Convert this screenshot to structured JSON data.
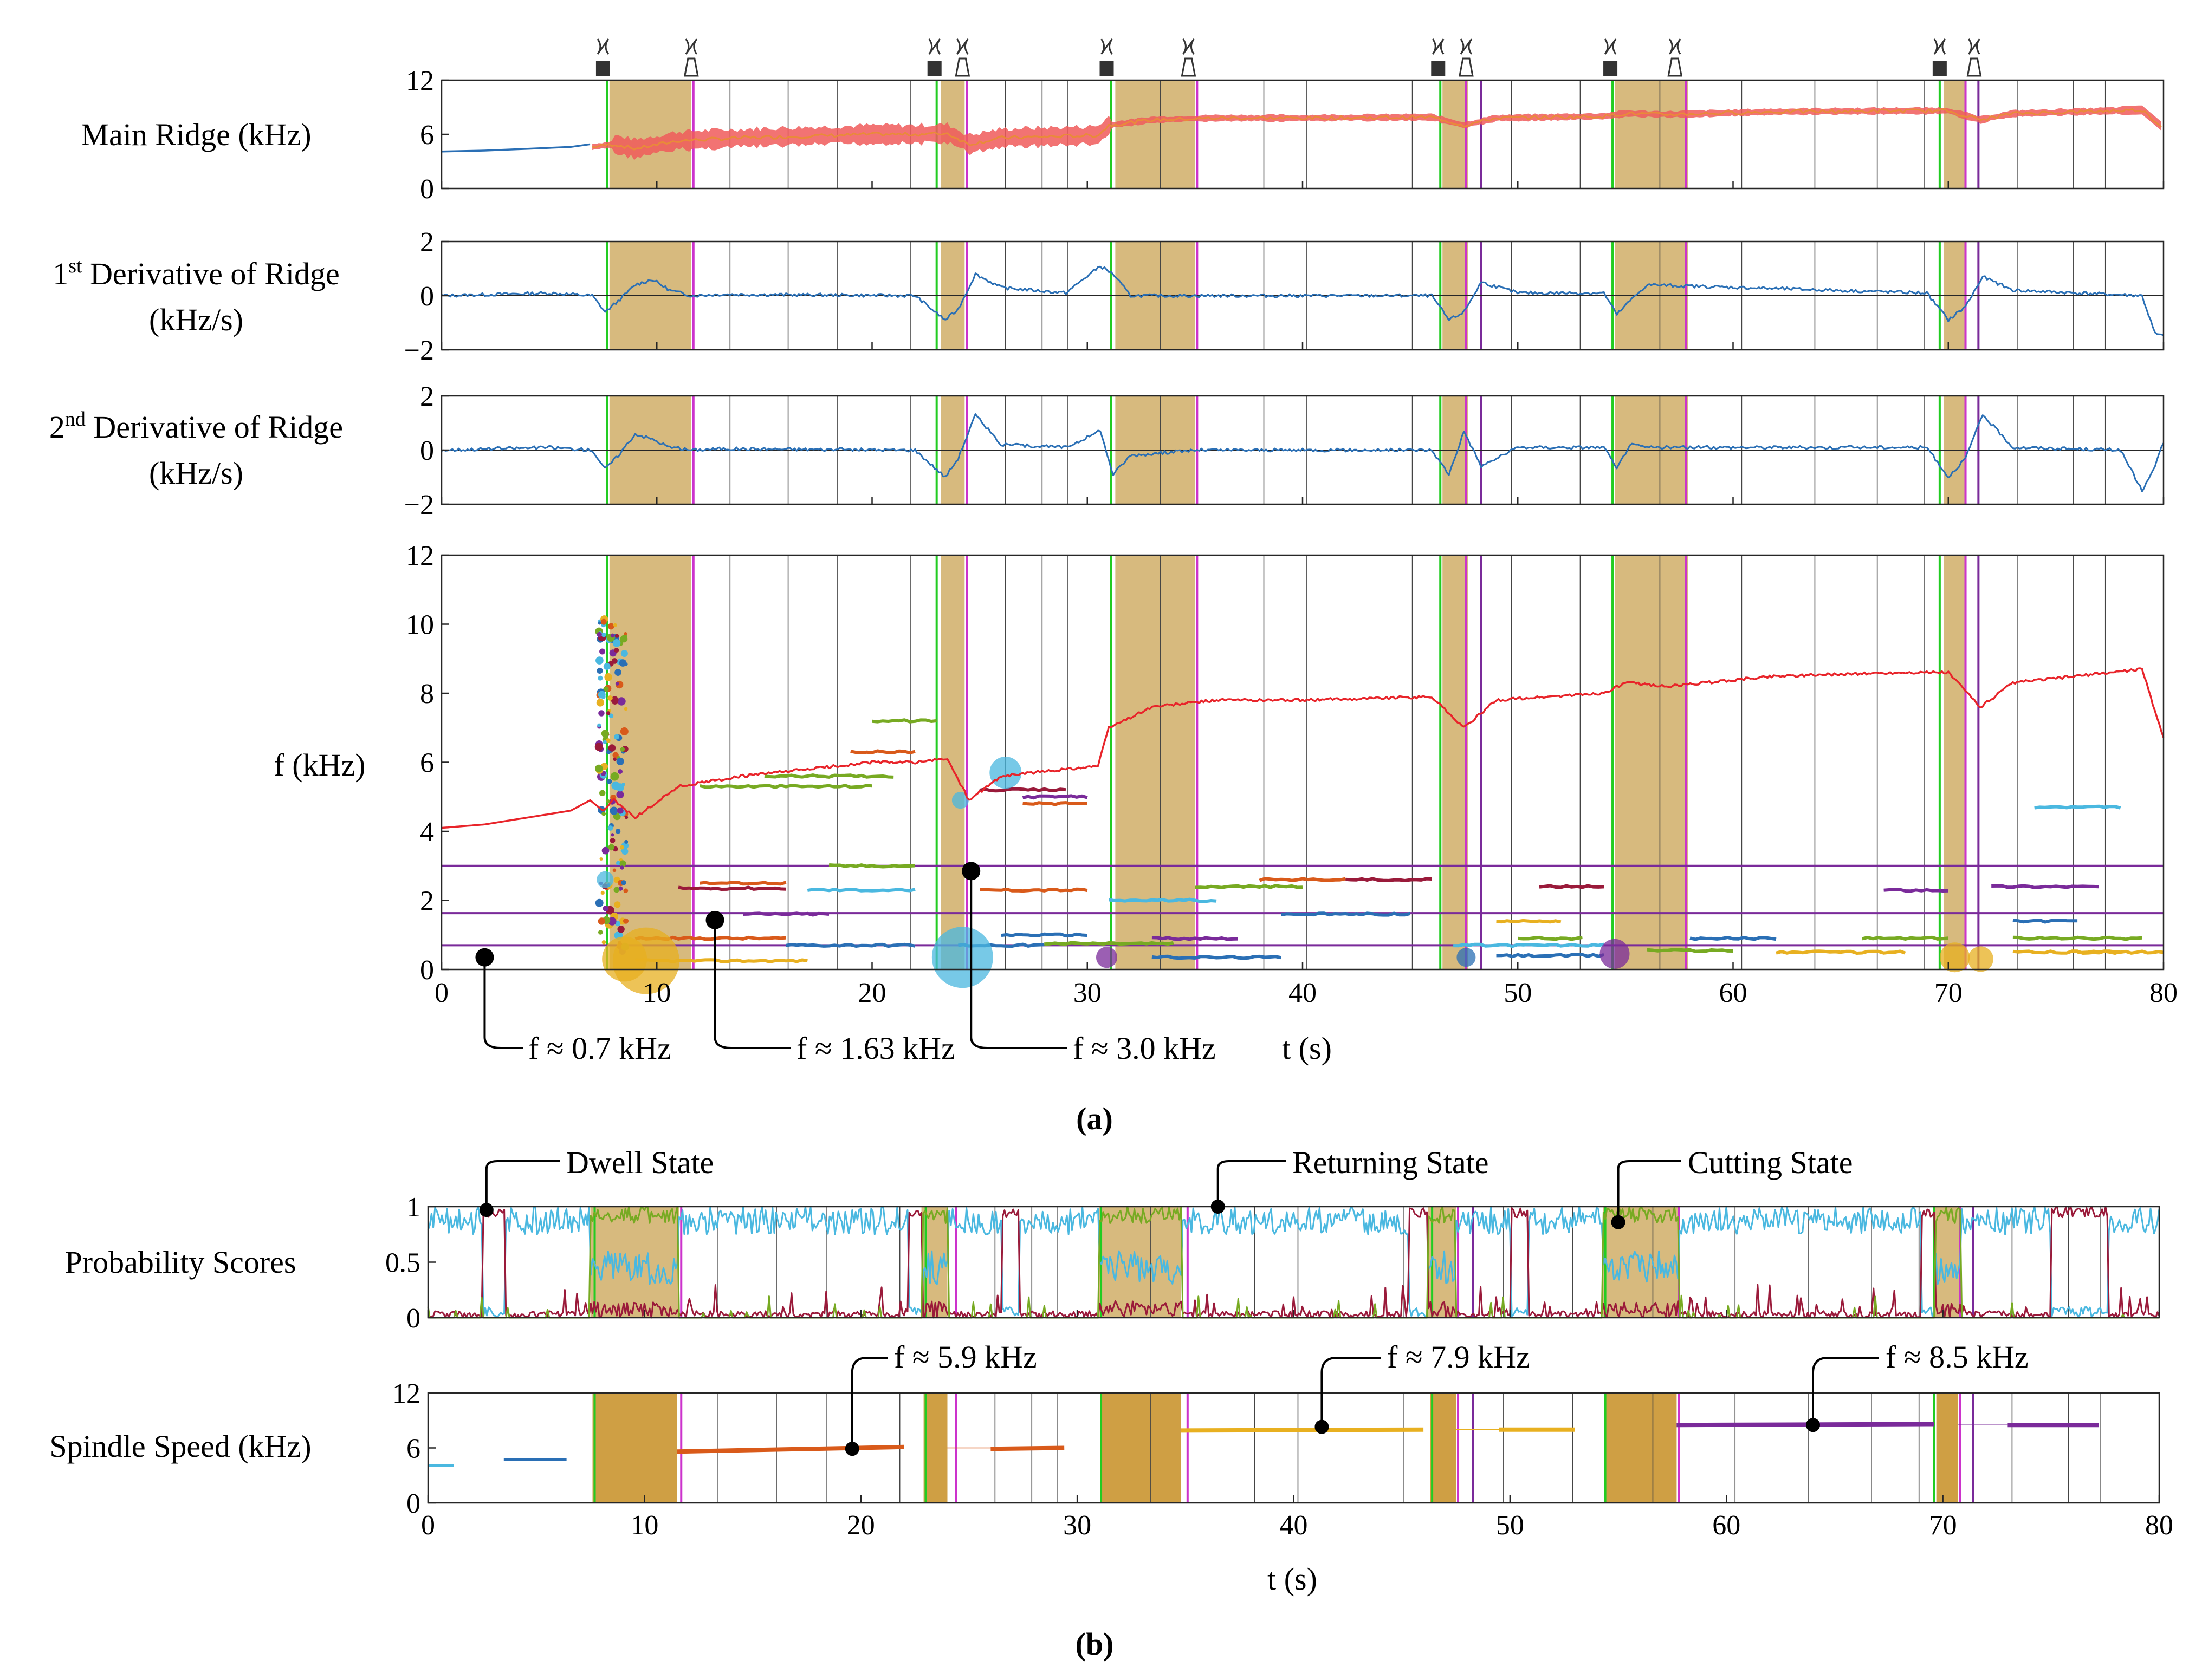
{
  "colors": {
    "cut_band": "#c8a04c",
    "cut_band_b": "#cc9a3a",
    "green_line": "#22cc22",
    "magenta_line": "#cc33cc",
    "ridge_red": "#e8242a",
    "ridge_blue": "#2a6fb5",
    "envelope_red": "#f05a5a",
    "envelope_orange": "#e98a3a",
    "purple_line": "#7a2a9a",
    "prob_cyan": "#4ab8e0",
    "prob_maroon": "#9a1a3a",
    "prob_green": "#77aa22",
    "speed_orange": "#d95a1a",
    "speed_yellow": "#e8b020",
    "speed_purple": "#7a2a9a"
  },
  "icons": [
    "drill-tool-icon",
    "tool-holder-icon"
  ],
  "chart_data": [
    {
      "id": "main-ridge",
      "type": "line",
      "ylabel": "Main Ridge (kHz)",
      "xlim": [
        0,
        80
      ],
      "ylim": [
        0,
        12
      ],
      "yticks": [
        "0",
        "6",
        "12"
      ],
      "cut_regions": [
        [
          7.8,
          11.6
        ],
        [
          23.2,
          24.3
        ],
        [
          31.3,
          35.0
        ],
        [
          46.5,
          47.7
        ],
        [
          54.5,
          57.9
        ],
        [
          69.8,
          70.8
        ]
      ],
      "green_lines": [
        7.7,
        23.0,
        31.1,
        46.4,
        54.4,
        69.6
      ],
      "magenta_lines": [
        11.7,
        24.4,
        35.1,
        47.6,
        57.8,
        70.8
      ],
      "purple_lines": [
        48.3,
        71.4
      ],
      "gray_lines": [
        13.4,
        16.1,
        18.4,
        21.8,
        26.2,
        27.9,
        29.1,
        33.4,
        38.2,
        40.2,
        45.1,
        49.7,
        52.9,
        56.6,
        60.4,
        63.8,
        66.7,
        68.9,
        73.2,
        75.8,
        77.3
      ],
      "tool_markers": [
        7.5,
        11.6,
        22.9,
        24.2,
        30.9,
        34.7,
        46.3,
        47.6,
        54.3,
        57.3,
        69.6,
        71.2
      ],
      "series": [
        {
          "name": "main ridge (idle)",
          "color": "#2a6fb5",
          "x": [
            0,
            2,
            4,
            6,
            6.9
          ],
          "y": [
            4.1,
            4.2,
            4.4,
            4.6,
            4.9
          ]
        },
        {
          "name": "main ridge (cutting)",
          "color": "#e8242a",
          "x": [
            7,
            8,
            9,
            11,
            14,
            17,
            20,
            22,
            23.5,
            24.5,
            26,
            29,
            30.5,
            31,
            33,
            36,
            40,
            46,
            47.5,
            49,
            54,
            55,
            57,
            62,
            68,
            70,
            71.5,
            73,
            76,
            79,
            80
          ],
          "y": [
            4.6,
            4.9,
            4.4,
            5.3,
            5.6,
            5.8,
            6.0,
            6.0,
            6.1,
            4.9,
            5.6,
            5.8,
            5.9,
            7.0,
            7.6,
            7.8,
            7.8,
            7.9,
            7.0,
            7.8,
            8.0,
            8.3,
            8.2,
            8.5,
            8.6,
            8.6,
            7.6,
            8.3,
            8.5,
            8.7,
            6.7
          ]
        }
      ]
    },
    {
      "id": "first-derivative",
      "type": "line",
      "ylabel": [
        "1st Derivative of Ridge",
        "(kHz/s)"
      ],
      "ylabel_base": "1",
      "ylabel_sup": "st",
      "ylabel_rest": " Derivative of Ridge",
      "ylabel_unit": "(kHz/s)",
      "xlim": [
        0,
        80
      ],
      "ylim": [
        -2,
        2
      ],
      "yticks": [
        "−2",
        "0",
        "2"
      ],
      "series": [
        {
          "name": "d1",
          "color": "#2a6fb5",
          "x": [
            0,
            5,
            7,
            7.6,
            8.2,
            9,
            9.8,
            10.6,
            11.6,
            13,
            22,
            23.4,
            24.0,
            24.8,
            26,
            29,
            30.6,
            31.2,
            32,
            35,
            46,
            46.8,
            47.5,
            48.3,
            50,
            54,
            54.6,
            55.2,
            56,
            69,
            70,
            70.8,
            71.6,
            73,
            79,
            79.6,
            80
          ],
          "y": [
            0,
            0.1,
            0,
            -0.6,
            -0.2,
            0.4,
            0.6,
            0.2,
            0,
            0.05,
            0,
            -0.9,
            -0.5,
            0.8,
            0.3,
            0.1,
            1.1,
            0.8,
            0,
            0,
            0,
            -0.9,
            -0.6,
            0.5,
            0.1,
            0.1,
            -0.7,
            -0.2,
            0.4,
            0.1,
            -0.9,
            -0.4,
            0.7,
            0.2,
            0,
            -1.4,
            -1.5
          ]
        }
      ]
    },
    {
      "id": "second-derivative",
      "type": "line",
      "ylabel": [
        "2nd Derivative of Ridge",
        "(kHz/s)"
      ],
      "ylabel_base": "2",
      "ylabel_sup": "nd",
      "ylabel_rest": " Derivative of Ridge",
      "ylabel_unit": "(kHz/s)",
      "xlim": [
        0,
        80
      ],
      "ylim": [
        -2,
        2
      ],
      "yticks": [
        "−2",
        "0",
        "2"
      ],
      "series": [
        {
          "name": "d2",
          "color": "#2a6fb5",
          "x": [
            0,
            5,
            7,
            7.6,
            8.2,
            9,
            9.8,
            10.6,
            11.6,
            13,
            22,
            23.4,
            24.0,
            24.8,
            26,
            29,
            30.6,
            31.2,
            32,
            35,
            46,
            46.8,
            47.5,
            48.3,
            50,
            54,
            54.6,
            55.2,
            56,
            69,
            70,
            70.8,
            71.6,
            73,
            78,
            79,
            79.5,
            80
          ],
          "y": [
            0,
            0.1,
            0,
            -0.7,
            -0.2,
            0.6,
            0.4,
            0.1,
            0,
            0.05,
            0,
            -1.0,
            -0.3,
            1.3,
            0.2,
            0.1,
            0.7,
            -0.9,
            -0.2,
            0,
            0,
            -0.9,
            0.7,
            -0.6,
            0.1,
            0.1,
            -0.7,
            0.2,
            0.1,
            0.1,
            -1.0,
            -0.3,
            1.3,
            0.1,
            0,
            -1.5,
            -0.8,
            0.3
          ]
        }
      ]
    },
    {
      "id": "spectrogram-ridges",
      "type": "scatter",
      "ylabel": "f (kHz)",
      "xlabel": "t (s)",
      "xlim": [
        0,
        80
      ],
      "ylim": [
        0,
        12
      ],
      "xticks": [
        "0",
        "10",
        "20",
        "30",
        "40",
        "50",
        "60",
        "70",
        "80"
      ],
      "yticks": [
        "0",
        "2",
        "4",
        "6",
        "8",
        "10",
        "12"
      ],
      "reference_lines_khz": [
        3.0,
        1.63,
        0.7
      ],
      "annotations": [
        {
          "text": "f ≈ 0.7 kHz",
          "x": 2.0,
          "y": 0.35
        },
        {
          "text": "f ≈ 1.63 kHz",
          "x": 12.7,
          "y": 1.43
        },
        {
          "text": "f ≈ 3.0 kHz",
          "x": 24.6,
          "y": 2.85
        }
      ],
      "series": [
        {
          "name": "ridge",
          "color": "#e8242a",
          "x": [
            0,
            2,
            4,
            6,
            6.9,
            7.5,
            8,
            9,
            11,
            14,
            17,
            20,
            22,
            23.5,
            24.5,
            26,
            29,
            30.5,
            31,
            33,
            36,
            40,
            46,
            47.5,
            49,
            54,
            55,
            57,
            62,
            68,
            70,
            71.5,
            73,
            76,
            79,
            80
          ],
          "y": [
            4.1,
            4.2,
            4.4,
            4.6,
            4.9,
            4.6,
            4.9,
            4.4,
            5.3,
            5.6,
            5.8,
            6.0,
            6.0,
            6.1,
            4.9,
            5.6,
            5.8,
            5.9,
            7.0,
            7.6,
            7.8,
            7.8,
            7.9,
            7.0,
            7.8,
            8.0,
            8.3,
            8.2,
            8.5,
            8.6,
            8.6,
            7.6,
            8.3,
            8.5,
            8.7,
            6.7
          ]
        }
      ]
    },
    {
      "id": "probability-scores",
      "type": "line",
      "ylabel": "Probability Scores",
      "xlim": [
        0,
        80
      ],
      "ylim": [
        0,
        1
      ],
      "yticks": [
        "0",
        "0.5",
        "1"
      ],
      "cut_regions": [
        [
          7.5,
          11.6
        ],
        [
          22.8,
          24.0
        ],
        [
          31.0,
          34.8
        ],
        [
          46.2,
          47.5
        ],
        [
          54.3,
          57.8
        ],
        [
          69.6,
          70.8
        ]
      ],
      "annotations": [
        {
          "text": "Dwell State",
          "x": 2.7,
          "y": 0.97
        },
        {
          "text": "Returning State",
          "x": 36.5,
          "y": 1.0
        },
        {
          "text": "Cutting State",
          "x": 55.0,
          "y": 0.86
        }
      ],
      "series": [
        {
          "name": "returning",
          "color": "#4ab8e0"
        },
        {
          "name": "dwell",
          "color": "#9a1a3a"
        },
        {
          "name": "cutting",
          "color": "#77aa22"
        }
      ]
    },
    {
      "id": "spindle-speed",
      "type": "line",
      "ylabel": "Spindle Speed (kHz)",
      "xlabel": "t (s)",
      "xlim": [
        0,
        80
      ],
      "ylim": [
        0,
        12
      ],
      "xticks": [
        "0",
        "10",
        "20",
        "30",
        "40",
        "50",
        "60",
        "70",
        "80"
      ],
      "yticks": [
        "0",
        "6",
        "12"
      ],
      "cut_regions": [
        [
          7.6,
          11.5
        ],
        [
          22.9,
          24.0
        ],
        [
          31.1,
          34.8
        ],
        [
          46.3,
          47.5
        ],
        [
          54.4,
          57.7
        ],
        [
          69.7,
          70.7
        ]
      ],
      "annotations": [
        {
          "text": "f ≈ 5.9 kHz",
          "x": 19.6,
          "y": 5.9
        },
        {
          "text": "f ≈ 7.9 kHz",
          "x": 41.3,
          "y": 8.3
        },
        {
          "text": "f ≈ 8.5 kHz",
          "x": 64.0,
          "y": 8.5
        }
      ],
      "series": [
        {
          "name": "idle",
          "color": "#4ab8e0",
          "x": [
            0,
            1.2
          ],
          "y": [
            4.1,
            4.1
          ]
        },
        {
          "name": "idle 2",
          "color": "#2a6fb5",
          "x": [
            3.5,
            6.4
          ],
          "y": [
            4.7,
            4.7
          ]
        },
        {
          "name": "speed 1",
          "color": "#d95a1a",
          "x": [
            11.5,
            22.0
          ],
          "y": [
            5.6,
            6.1
          ]
        },
        {
          "name": "speed 1b",
          "color": "#d95a1a",
          "x": [
            26.0,
            29.4
          ],
          "y": [
            5.9,
            6.0
          ]
        },
        {
          "name": "speed 2",
          "color": "#e8b020",
          "x": [
            34.8,
            46.0
          ],
          "y": [
            7.9,
            8.0
          ]
        },
        {
          "name": "speed 2b",
          "color": "#e8b020",
          "x": [
            49.5,
            53.0
          ],
          "y": [
            8.0,
            8.0
          ]
        },
        {
          "name": "speed 3",
          "color": "#7a2a9a",
          "x": [
            57.7,
            69.6
          ],
          "y": [
            8.5,
            8.6
          ]
        },
        {
          "name": "speed 3b",
          "color": "#7a2a9a",
          "x": [
            73.0,
            77.2
          ],
          "y": [
            8.5,
            8.5
          ]
        }
      ]
    }
  ],
  "captions": {
    "a": "(a)",
    "b": "(b)"
  }
}
